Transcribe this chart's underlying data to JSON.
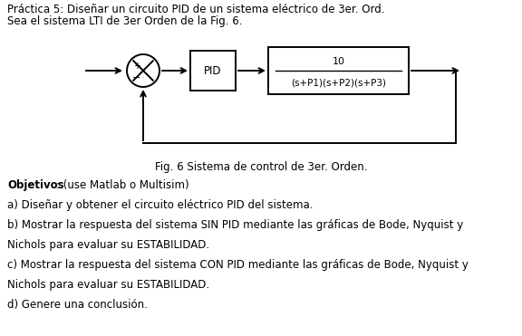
{
  "title_line": "Sea el sistema LTI de 3er Orden de la Fig. 6.",
  "header_line": "Práctica 5: Diseñar un circuito PID de un sistema eléctrico de 3er. Ord.",
  "fig_caption": "Fig. 6 Sistema de control de 3er. Orden.",
  "objectives_label": "Objetivos",
  "objectives_colon": ": (use Matlab o Multisim)",
  "obj_a": "a) Diseñar y obtener el circuito eléctrico PID del sistema.",
  "obj_b1": "b) Mostrar la respuesta del sistema SIN PID mediante las gráficas de Bode, Nyquist y",
  "obj_b2": "Nichols para evaluar su ESTABILIDAD.",
  "obj_c1": "c) Mostrar la respuesta del sistema CON PID mediante las gráficas de Bode, Nyquist y",
  "obj_c2": "Nichols para evaluar su ESTABILIDAD.",
  "obj_d": "d) Genere una conclusión.",
  "pid_label": "PID",
  "tf_numerator": "10",
  "tf_denominator": "(s+P1)(s+P2)(s+P3)",
  "bg_color": "#ffffff",
  "text_color": "#000000",
  "font_size_text": 8.5,
  "font_size_obj": 8.5,
  "font_size_caption": 8.5,
  "font_size_tf": 8.0,
  "lw": 1.4
}
